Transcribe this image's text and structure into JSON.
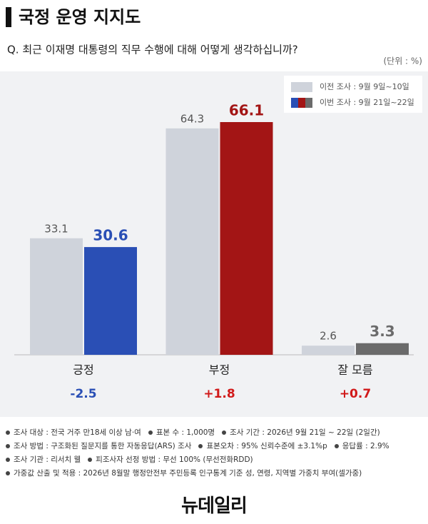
{
  "chart_data": {
    "type": "bar",
    "title": "국정 운영 지지도",
    "subtitle": "Q. 최근 이재명 대통령의 직무 수행에 대해 어떻게 생각하십니까?",
    "unit_label": "(단위 : %)",
    "categories": [
      "긍정",
      "부정",
      "잘 모름"
    ],
    "series": [
      {
        "name": "이전 조사 : 9월 9일~10일",
        "color": "#cfd3db",
        "values": [
          33.1,
          64.3,
          2.6
        ]
      },
      {
        "name": "이번 조사 : 9월 21일~22일",
        "colors": [
          "#2a4fb5",
          "#a31515",
          "#6b6b6b"
        ],
        "values": [
          30.6,
          66.1,
          3.3
        ]
      }
    ],
    "changes": [
      {
        "value": -2.5,
        "label": "-2.5"
      },
      {
        "value": 1.8,
        "label": "+1.8"
      },
      {
        "value": 0.7,
        "label": "+0.7"
      }
    ],
    "change_colors": {
      "negative": "#2a4fb5",
      "positive": "#d11a1a"
    }
  },
  "notes": [
    [
      "조사 대상 : 전국 거주 만18세 이상 남·여",
      "표본 수 : 1,000명",
      "조사 기간 : 2026년 9월 21일 ~ 22일 (2일간)"
    ],
    [
      "조사 방법 : 구조화된 질문지를 통한 자동응답(ARS) 조사",
      "표본오차 : 95% 신뢰수준에 ±3.1%p",
      "응답률 : 2.9%"
    ],
    [
      "조사 기관 : 리서치 웰",
      "피조사자 선정 방법 : 무선 100% (무선전화RDD)"
    ],
    [
      "가중값 산출 및 적용 : 2026년 8월말 행정안전부 주민등록 인구통계 기준 성, 연령, 지역별 가중치 부여(셀가중)"
    ]
  ],
  "logo": "뉴데일리"
}
